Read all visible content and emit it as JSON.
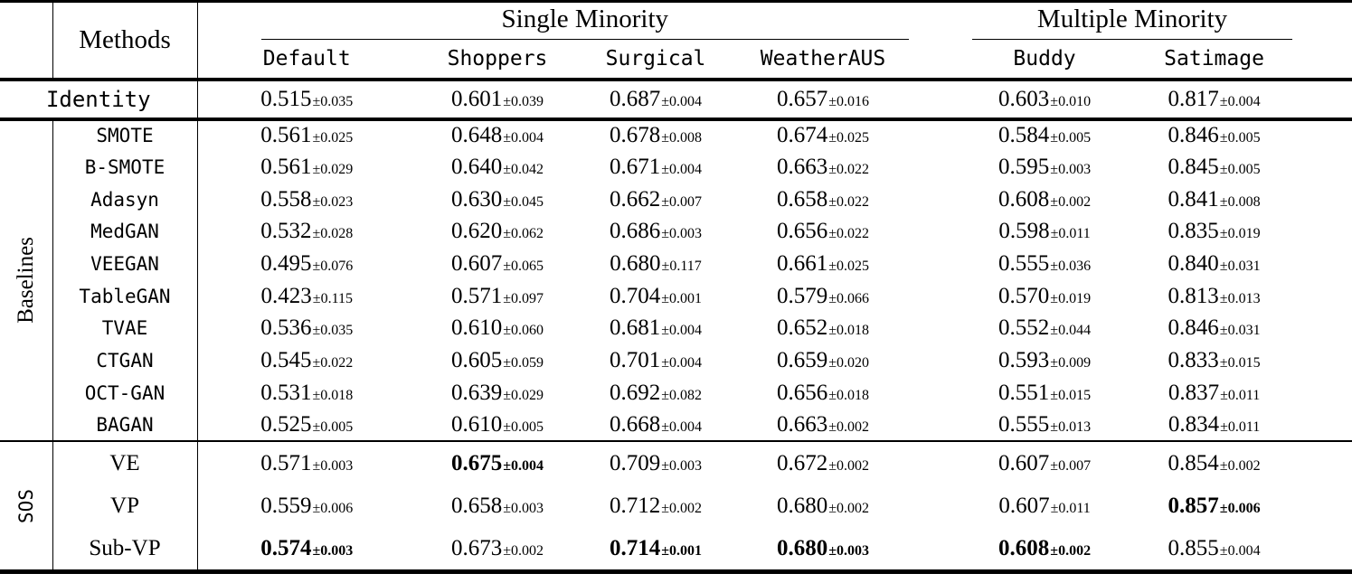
{
  "colors": {
    "text": "#000000",
    "background": "#ffffff",
    "rule": "#000000"
  },
  "table": {
    "pm_sign": "±",
    "methods_header": "Methods",
    "col_groups": [
      {
        "label": "Single Minority",
        "columns": [
          "Default",
          "Shoppers",
          "Surgical",
          "WeatherAUS"
        ]
      },
      {
        "label": "Multiple Minority",
        "columns": [
          "Buddy",
          "Satimage"
        ]
      }
    ],
    "identity_row": {
      "method": "Identity",
      "values": [
        {
          "mean": "0.515",
          "std": "0.035"
        },
        {
          "mean": "0.601",
          "std": "0.039"
        },
        {
          "mean": "0.687",
          "std": "0.004"
        },
        {
          "mean": "0.657",
          "std": "0.016"
        },
        {
          "mean": "0.603",
          "std": "0.010"
        },
        {
          "mean": "0.817",
          "std": "0.004"
        }
      ]
    },
    "groups": [
      {
        "label": "Baselines",
        "label_style": "text",
        "method_style": "code",
        "rows": [
          {
            "method": "SMOTE",
            "values": [
              {
                "mean": "0.561",
                "std": "0.025"
              },
              {
                "mean": "0.648",
                "std": "0.004"
              },
              {
                "mean": "0.678",
                "std": "0.008"
              },
              {
                "mean": "0.674",
                "std": "0.025"
              },
              {
                "mean": "0.584",
                "std": "0.005"
              },
              {
                "mean": "0.846",
                "std": "0.005"
              }
            ]
          },
          {
            "method": "B-SMOTE",
            "values": [
              {
                "mean": "0.561",
                "std": "0.029"
              },
              {
                "mean": "0.640",
                "std": "0.042"
              },
              {
                "mean": "0.671",
                "std": "0.004"
              },
              {
                "mean": "0.663",
                "std": "0.022"
              },
              {
                "mean": "0.595",
                "std": "0.003"
              },
              {
                "mean": "0.845",
                "std": "0.005"
              }
            ]
          },
          {
            "method": "Adasyn",
            "values": [
              {
                "mean": "0.558",
                "std": "0.023"
              },
              {
                "mean": "0.630",
                "std": "0.045"
              },
              {
                "mean": "0.662",
                "std": "0.007"
              },
              {
                "mean": "0.658",
                "std": "0.022"
              },
              {
                "mean": "0.608",
                "std": "0.002"
              },
              {
                "mean": "0.841",
                "std": "0.008"
              }
            ]
          },
          {
            "method": "MedGAN",
            "values": [
              {
                "mean": "0.532",
                "std": "0.028"
              },
              {
                "mean": "0.620",
                "std": "0.062"
              },
              {
                "mean": "0.686",
                "std": "0.003"
              },
              {
                "mean": "0.656",
                "std": "0.022"
              },
              {
                "mean": "0.598",
                "std": "0.011"
              },
              {
                "mean": "0.835",
                "std": "0.019"
              }
            ]
          },
          {
            "method": "VEEGAN",
            "values": [
              {
                "mean": "0.495",
                "std": "0.076"
              },
              {
                "mean": "0.607",
                "std": "0.065"
              },
              {
                "mean": "0.680",
                "std": "0.117"
              },
              {
                "mean": "0.661",
                "std": "0.025"
              },
              {
                "mean": "0.555",
                "std": "0.036"
              },
              {
                "mean": "0.840",
                "std": "0.031"
              }
            ]
          },
          {
            "method": "TableGAN",
            "values": [
              {
                "mean": "0.423",
                "std": "0.115"
              },
              {
                "mean": "0.571",
                "std": "0.097"
              },
              {
                "mean": "0.704",
                "std": "0.001"
              },
              {
                "mean": "0.579",
                "std": "0.066"
              },
              {
                "mean": "0.570",
                "std": "0.019"
              },
              {
                "mean": "0.813",
                "std": "0.013"
              }
            ]
          },
          {
            "method": "TVAE",
            "values": [
              {
                "mean": "0.536",
                "std": "0.035"
              },
              {
                "mean": "0.610",
                "std": "0.060"
              },
              {
                "mean": "0.681",
                "std": "0.004"
              },
              {
                "mean": "0.652",
                "std": "0.018"
              },
              {
                "mean": "0.552",
                "std": "0.044"
              },
              {
                "mean": "0.846",
                "std": "0.031"
              }
            ]
          },
          {
            "method": "CTGAN",
            "values": [
              {
                "mean": "0.545",
                "std": "0.022"
              },
              {
                "mean": "0.605",
                "std": "0.059"
              },
              {
                "mean": "0.701",
                "std": "0.004"
              },
              {
                "mean": "0.659",
                "std": "0.020"
              },
              {
                "mean": "0.593",
                "std": "0.009"
              },
              {
                "mean": "0.833",
                "std": "0.015"
              }
            ]
          },
          {
            "method": "OCT-GAN",
            "values": [
              {
                "mean": "0.531",
                "std": "0.018"
              },
              {
                "mean": "0.639",
                "std": "0.029"
              },
              {
                "mean": "0.692",
                "std": "0.082"
              },
              {
                "mean": "0.656",
                "std": "0.018"
              },
              {
                "mean": "0.551",
                "std": "0.015"
              },
              {
                "mean": "0.837",
                "std": "0.011"
              }
            ]
          },
          {
            "method": "BAGAN",
            "values": [
              {
                "mean": "0.525",
                "std": "0.005"
              },
              {
                "mean": "0.610",
                "std": "0.005"
              },
              {
                "mean": "0.668",
                "std": "0.004"
              },
              {
                "mean": "0.663",
                "std": "0.002"
              },
              {
                "mean": "0.555",
                "std": "0.013"
              },
              {
                "mean": "0.834",
                "std": "0.011"
              }
            ]
          }
        ]
      },
      {
        "label": "SOS",
        "label_style": "code",
        "method_style": "text",
        "rows": [
          {
            "method": "VE",
            "values": [
              {
                "mean": "0.571",
                "std": "0.003"
              },
              {
                "mean": "0.675",
                "std": "0.004",
                "bold": true
              },
              {
                "mean": "0.709",
                "std": "0.003"
              },
              {
                "mean": "0.672",
                "std": "0.002"
              },
              {
                "mean": "0.607",
                "std": "0.007"
              },
              {
                "mean": "0.854",
                "std": "0.002"
              }
            ]
          },
          {
            "method": "VP",
            "values": [
              {
                "mean": "0.559",
                "std": "0.006"
              },
              {
                "mean": "0.658",
                "std": "0.003"
              },
              {
                "mean": "0.712",
                "std": "0.002"
              },
              {
                "mean": "0.680",
                "std": "0.002"
              },
              {
                "mean": "0.607",
                "std": "0.011"
              },
              {
                "mean": "0.857",
                "std": "0.006",
                "bold": true
              }
            ]
          },
          {
            "method": "Sub-VP",
            "values": [
              {
                "mean": "0.574",
                "std": "0.003",
                "bold": true
              },
              {
                "mean": "0.673",
                "std": "0.002"
              },
              {
                "mean": "0.714",
                "std": "0.001",
                "bold": true
              },
              {
                "mean": "0.680",
                "std": "0.003",
                "bold": true
              },
              {
                "mean": "0.608",
                "std": "0.002",
                "bold": true
              },
              {
                "mean": "0.855",
                "std": "0.004"
              }
            ]
          }
        ]
      }
    ]
  }
}
